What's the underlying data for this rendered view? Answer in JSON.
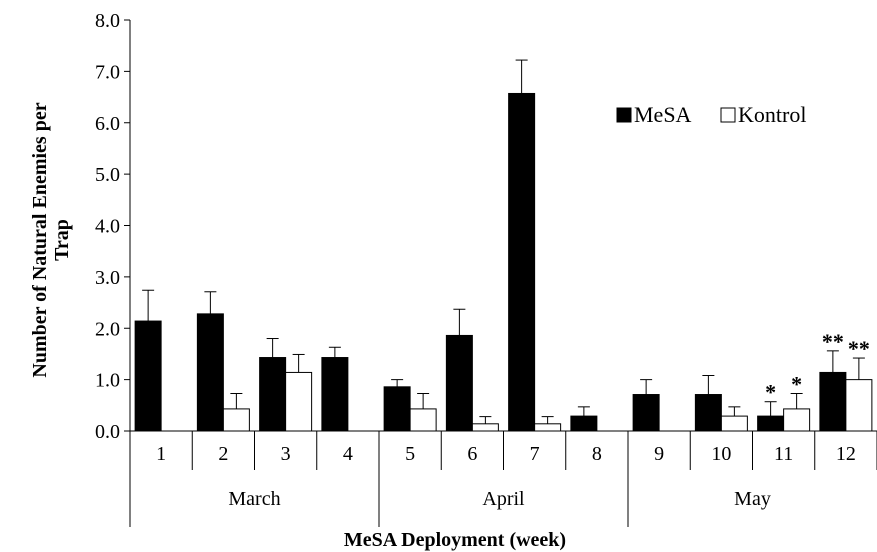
{
  "chart_data": {
    "type": "bar",
    "xlabel": "MeSA Deployment (week)",
    "ylabel_line1": "Number of Natural Enemies per",
    "ylabel_line2": "Trap",
    "ylim": [
      0,
      8
    ],
    "ytick_step": 1,
    "yticks": [
      "0.0",
      "1.0",
      "2.0",
      "3.0",
      "4.0",
      "5.0",
      "6.0",
      "7.0",
      "8.0"
    ],
    "categories": [
      "1",
      "2",
      "3",
      "4",
      "5",
      "6",
      "7",
      "8",
      "9",
      "10",
      "11",
      "12"
    ],
    "months": [
      {
        "label": "March",
        "start": 0,
        "end": 3
      },
      {
        "label": "April",
        "start": 4,
        "end": 7
      },
      {
        "label": "May",
        "start": 8,
        "end": 11
      }
    ],
    "legend_position": "top-right",
    "series": [
      {
        "name": "MeSA",
        "color": "#000000",
        "values": [
          2.14,
          2.28,
          1.43,
          1.43,
          0.86,
          1.86,
          6.57,
          0.29,
          0.71,
          0.71,
          0.29,
          1.14
        ],
        "errors": [
          0.6,
          0.43,
          0.37,
          0.2,
          0.14,
          0.51,
          0.65,
          0.18,
          0.29,
          0.37,
          0.28,
          0.42
        ],
        "sig": [
          "",
          "",
          "",
          "",
          "",
          "",
          "",
          "",
          "",
          "",
          "*",
          "**"
        ]
      },
      {
        "name": "Kontrol",
        "color": "#ffffff",
        "values": [
          0,
          0.43,
          1.14,
          0,
          0.43,
          0.14,
          0.14,
          0,
          0,
          0.29,
          0.43,
          1.0
        ],
        "errors": [
          0,
          0.3,
          0.35,
          0,
          0.3,
          0.14,
          0.14,
          0,
          0,
          0.18,
          0.3,
          0.42
        ],
        "sig": [
          "",
          "",
          "",
          "",
          "",
          "",
          "",
          "",
          "",
          "",
          "*",
          "**"
        ]
      }
    ]
  }
}
